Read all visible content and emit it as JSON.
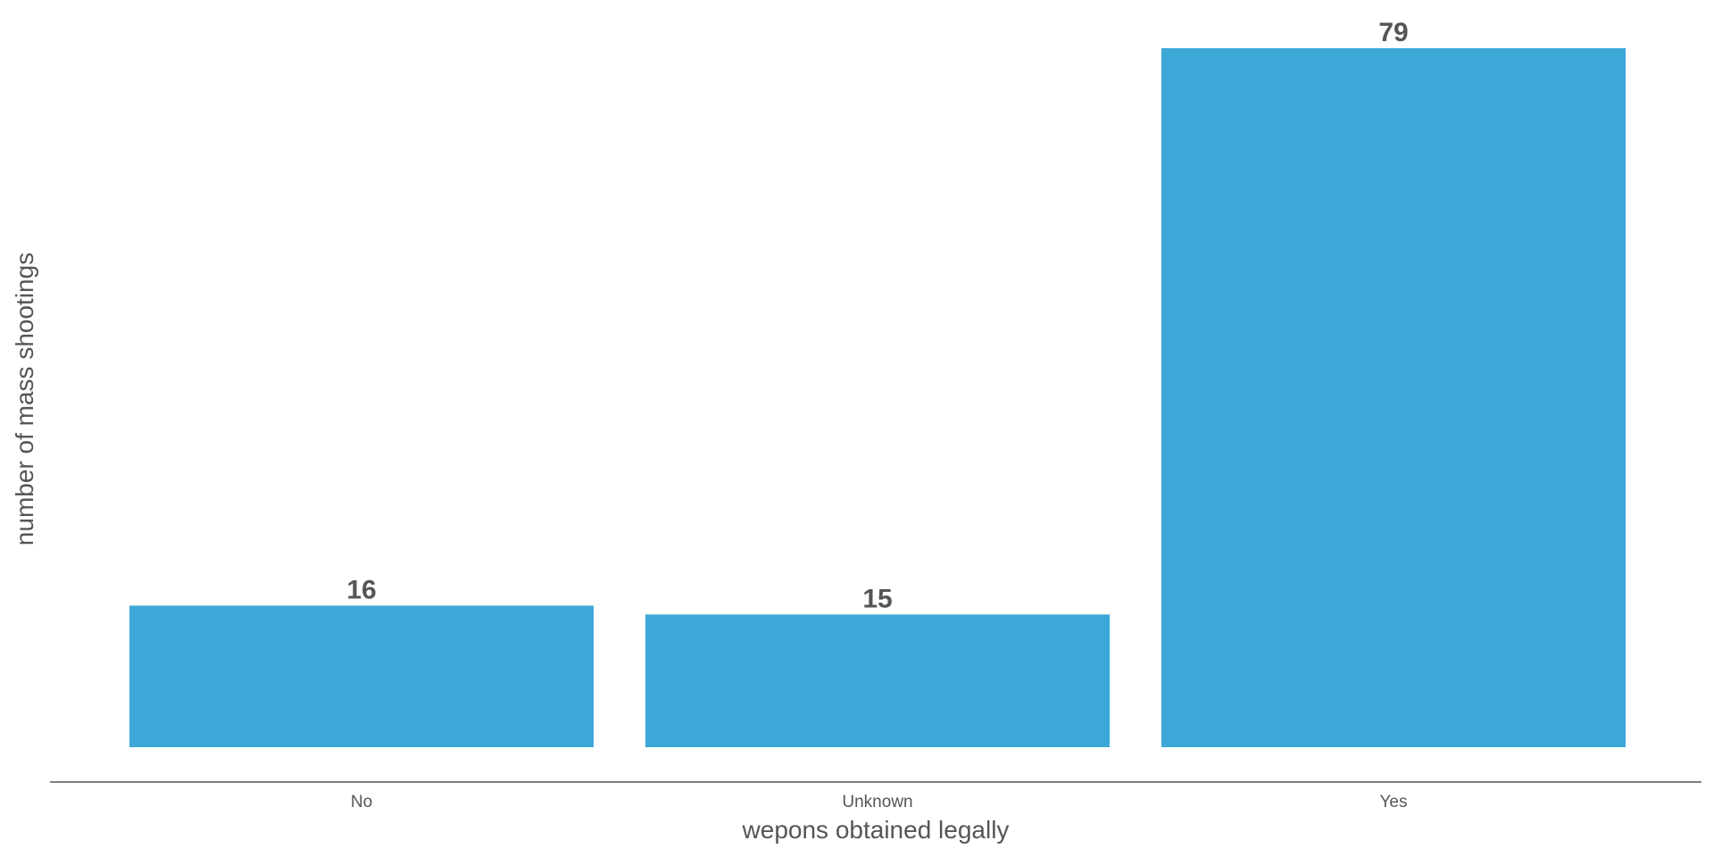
{
  "chart_data": {
    "type": "bar",
    "title": "",
    "xlabel": "wepons obtained legally",
    "ylabel": "number of mass shootings",
    "categories": [
      "No",
      "Unknown",
      "Yes"
    ],
    "values": [
      16,
      15,
      79
    ],
    "value_labels": [
      "16",
      "15",
      "79"
    ],
    "ylim": [
      0,
      79
    ],
    "grid": false,
    "legend": "none",
    "bar_color": "#3ca8d8",
    "text_color": "#555555"
  }
}
